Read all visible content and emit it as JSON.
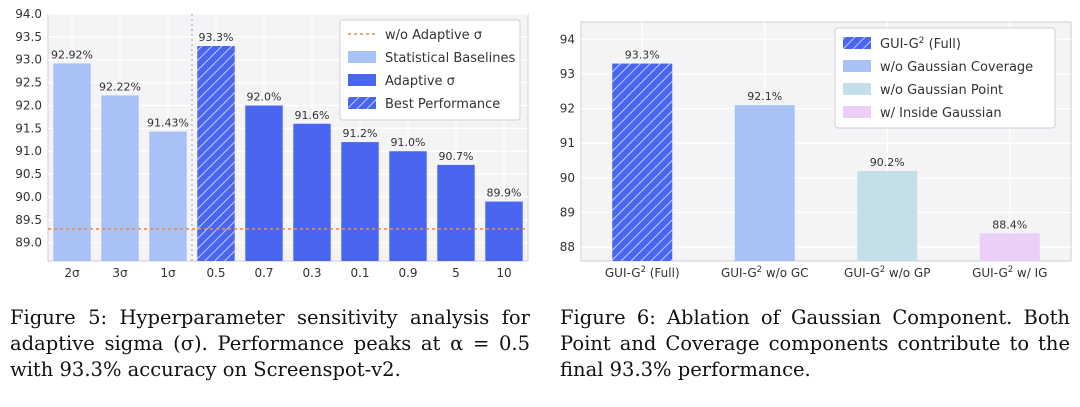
{
  "chart_data": [
    {
      "type": "bar",
      "id": "fig5",
      "title": "",
      "xlabel": "",
      "ylabel": "",
      "ylim": [
        88.6,
        94.0
      ],
      "yticks": [
        89.0,
        89.5,
        90.0,
        90.5,
        91.0,
        91.5,
        92.0,
        92.5,
        93.0,
        93.5,
        94.0
      ],
      "ytick_labels": [
        "89.0",
        "89.5",
        "90.0",
        "90.5",
        "91.0",
        "91.5",
        "92.0",
        "92.5",
        "93.0",
        "93.5",
        "94.0"
      ],
      "categories": [
        "2σ",
        "3σ",
        "1σ",
        "0.5",
        "0.7",
        "0.3",
        "0.1",
        "0.9",
        "5",
        "10"
      ],
      "values": [
        92.92,
        92.22,
        91.43,
        93.3,
        92.0,
        91.6,
        91.2,
        91.0,
        90.7,
        89.9
      ],
      "data_labels": [
        "92.92%",
        "92.22%",
        "91.43%",
        "93.3%",
        "92.0%",
        "91.6%",
        "91.2%",
        "91.0%",
        "90.7%",
        "89.9%"
      ],
      "bar_groups": [
        "baseline",
        "baseline",
        "baseline",
        "best",
        "adaptive",
        "adaptive",
        "adaptive",
        "adaptive",
        "adaptive",
        "adaptive"
      ],
      "reference_line": {
        "label": "w/o Adaptive σ",
        "value": 89.3,
        "color": "#f08a4b"
      },
      "colors": {
        "baseline": "#a9c2f5",
        "adaptive": "#4a66f0",
        "best": "#4a66f0"
      },
      "legend": {
        "position": "top-right",
        "entries": [
          {
            "label": "w/o Adaptive σ",
            "kind": "line",
            "color": "#f08a4b"
          },
          {
            "label": "Statistical Baselines",
            "kind": "patch",
            "color": "#a9c2f5"
          },
          {
            "label": "Adaptive σ",
            "kind": "patch",
            "color": "#4a66f0"
          },
          {
            "label": "Best Performance",
            "kind": "hatch",
            "color": "#4a66f0"
          }
        ]
      },
      "grid": true
    },
    {
      "type": "bar",
      "id": "fig6",
      "title": "",
      "xlabel": "",
      "ylabel": "",
      "ylim": [
        87.6,
        94.5
      ],
      "yticks": [
        88,
        89,
        90,
        91,
        92,
        93,
        94
      ],
      "ytick_labels": [
        "88",
        "89",
        "90",
        "91",
        "92",
        "93",
        "94"
      ],
      "categories": [
        "GUI-G² (Full)",
        "GUI-G² w/o GC",
        "GUI-G² w/o GP",
        "GUI-G² w/ IG"
      ],
      "category_parts": [
        {
          "base": "GUI-G",
          "sup": "2",
          "rest": " (Full)"
        },
        {
          "base": "GUI-G",
          "sup": "2",
          "rest": " w/o GC"
        },
        {
          "base": "GUI-G",
          "sup": "2",
          "rest": " w/o GP"
        },
        {
          "base": "GUI-G",
          "sup": "2",
          "rest": " w/ IG"
        }
      ],
      "values": [
        93.3,
        92.1,
        90.2,
        88.4
      ],
      "data_labels": [
        "93.3%",
        "92.1%",
        "90.2%",
        "88.4%"
      ],
      "bar_colors": [
        "#4a66f0",
        "#a9c2f5",
        "#c5dfe8",
        "#eccff7"
      ],
      "bar_hatch": [
        true,
        false,
        false,
        false
      ],
      "legend": {
        "position": "top-right",
        "entries": [
          {
            "label": "GUI-G² (Full)",
            "base": "GUI-G",
            "sup": "2",
            "rest": " (Full)",
            "kind": "hatch",
            "color": "#4a66f0"
          },
          {
            "label": "w/o Gaussian Coverage",
            "kind": "patch",
            "color": "#a9c2f5"
          },
          {
            "label": "w/o Gaussian Point",
            "kind": "patch",
            "color": "#c5dfe8"
          },
          {
            "label": "w/ Inside Gaussian",
            "kind": "patch",
            "color": "#eccff7"
          }
        ]
      },
      "grid": true
    }
  ],
  "captions": {
    "left": "Figure 5: Hyperparameter sensitivity analysis for adaptive sigma (σ). Performance peaks at α = 0.5 with 93.3% accuracy on Screenspot-v2.",
    "right": "Figure 6: Ablation of Gaussian Component. Both Point and Coverage components contribute to the final 93.3% performance."
  },
  "colors": {
    "plot_background": "#f4f4f6",
    "grid": "#ffffff",
    "axis_frame": "#cfcfd4",
    "hatch_line": "#dfe5ff"
  }
}
